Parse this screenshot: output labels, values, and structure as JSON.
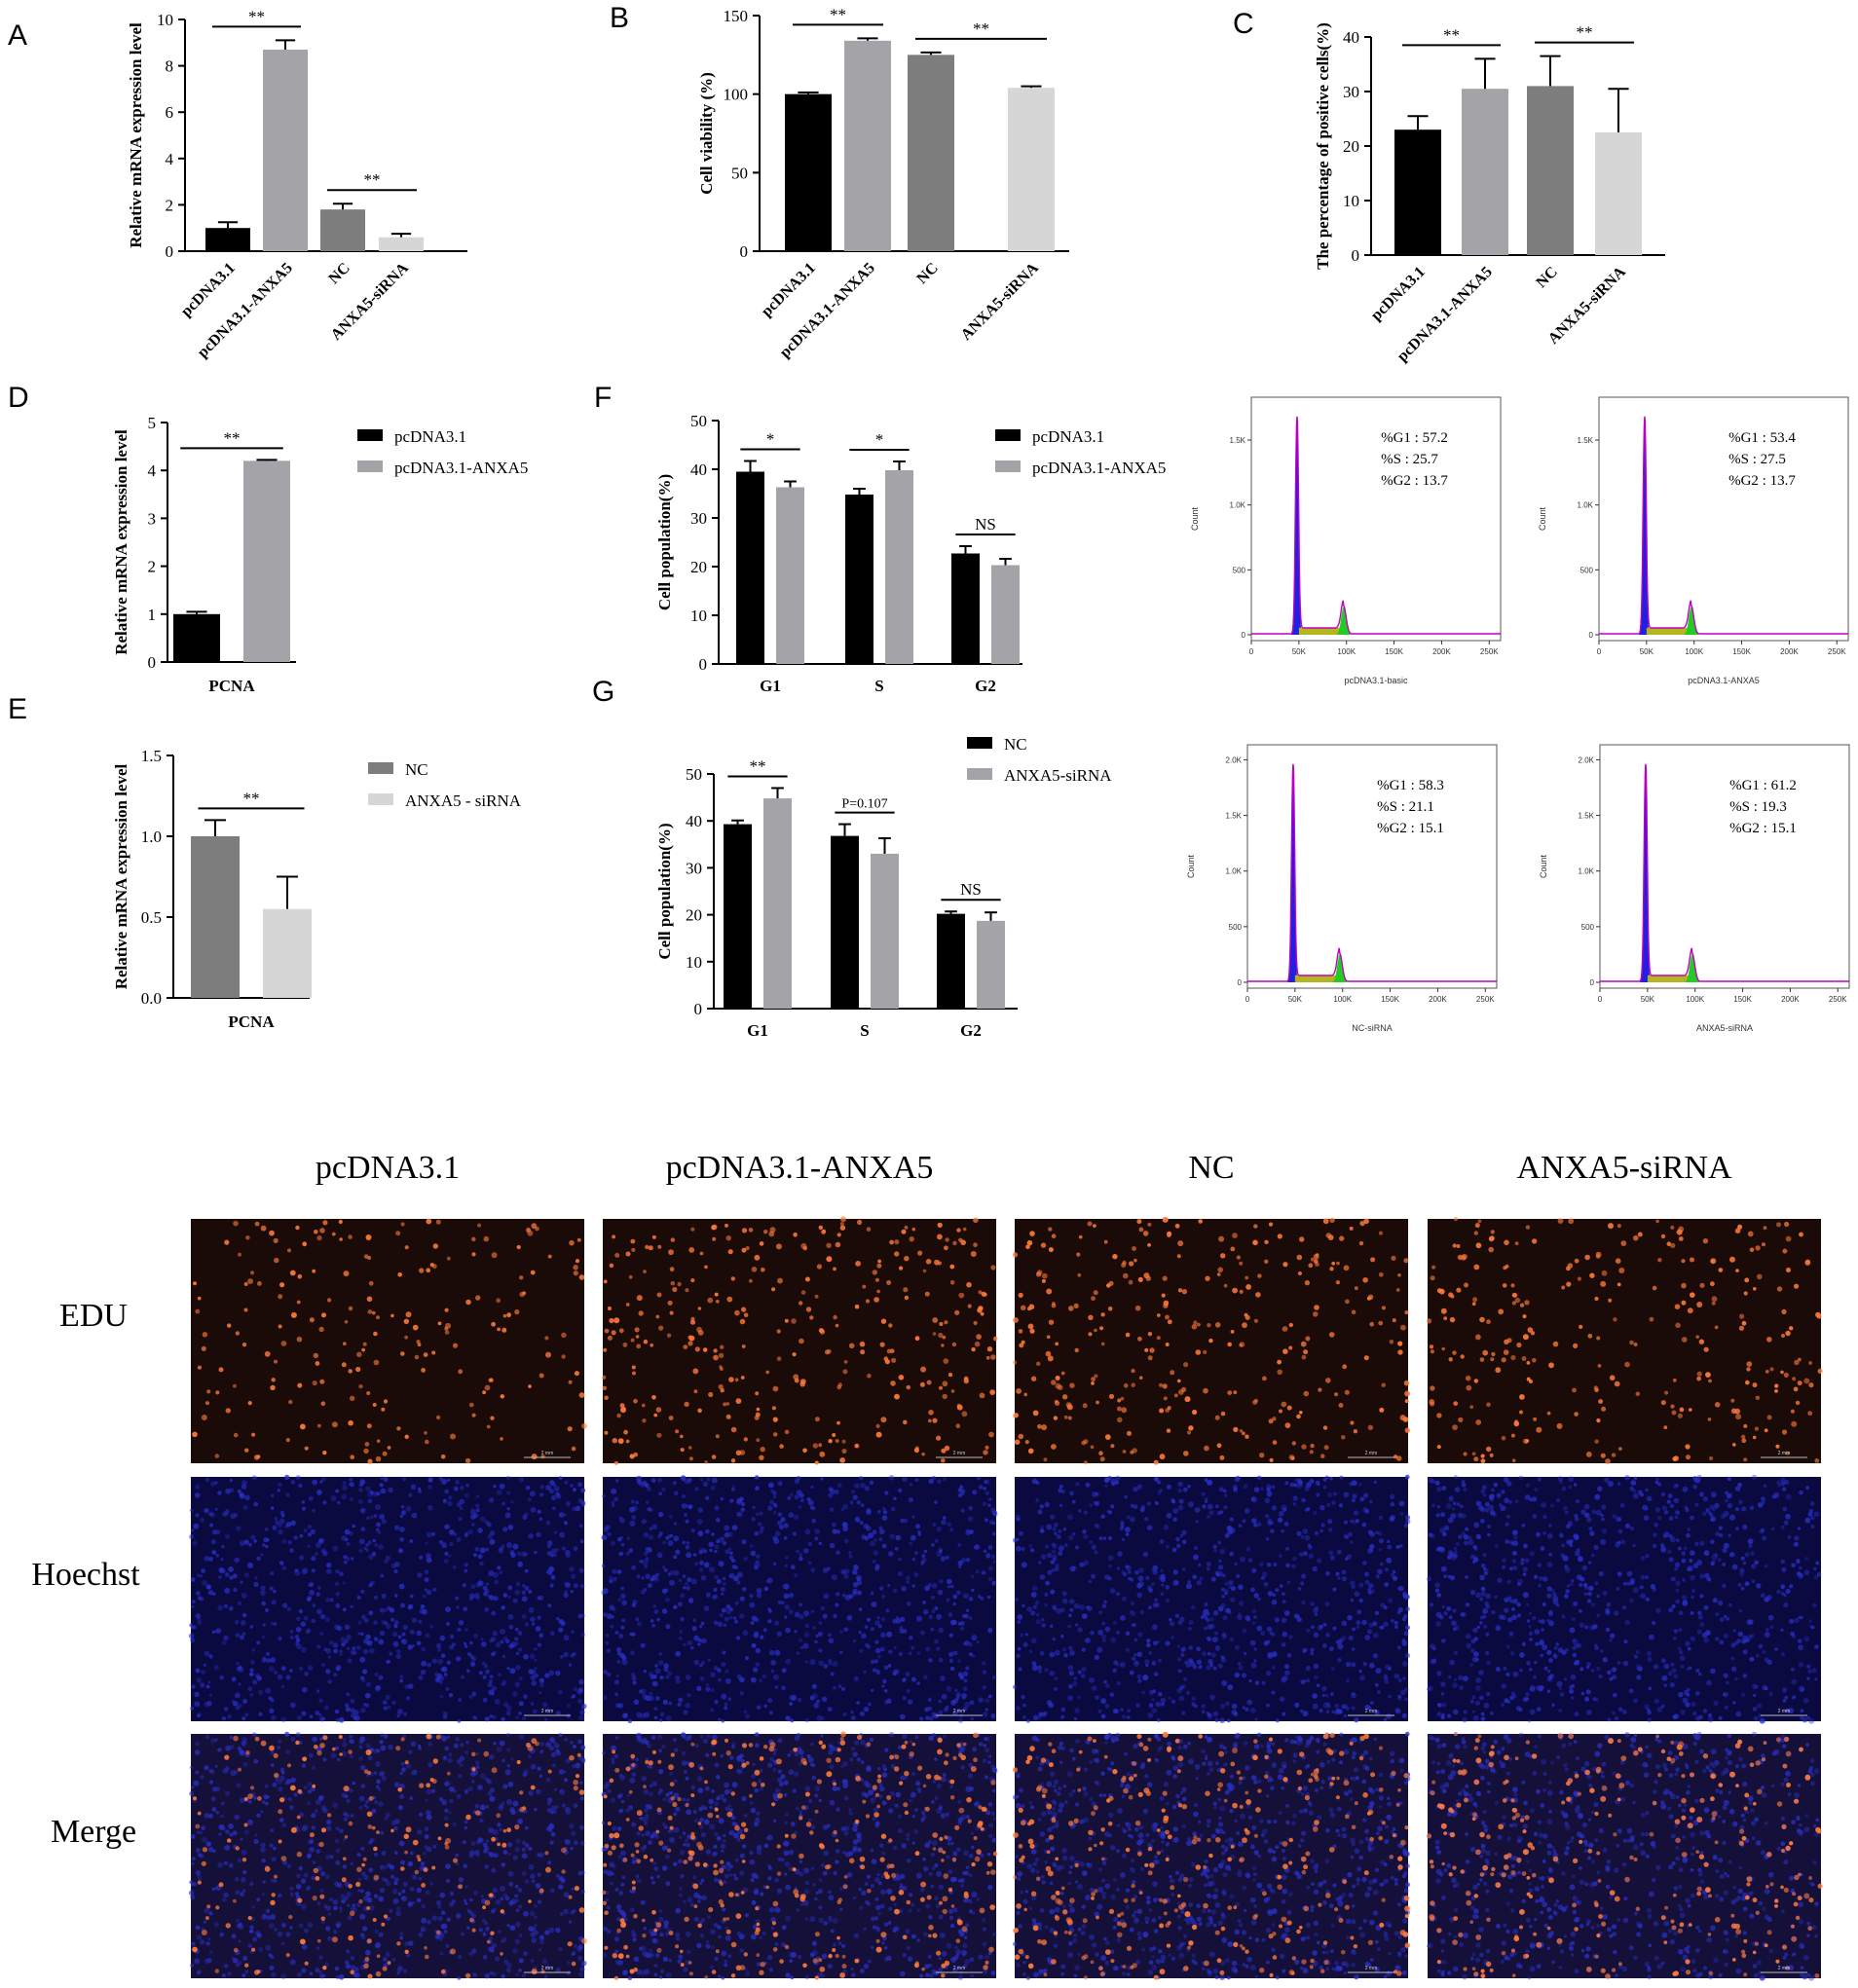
{
  "colors": {
    "black": "#000000",
    "gray": "#a3a3a8",
    "darkgray": "#7d7d7d",
    "lightgray": "#d6d6d6",
    "flow_line": "#c000c0",
    "flow_blue": "#2020e0",
    "flow_green": "#22cc22",
    "flow_yellow": "#b5b520",
    "edu_bg": "#1a0a08",
    "edu_dot": "#ff7a3a",
    "hoechst_bg": "#0a0a40",
    "hoechst_dot": "#2a30c8"
  },
  "chart_data": [
    {
      "id": "A",
      "type": "bar",
      "panel": "A",
      "ylabel": "Relative mRNA expression level",
      "ylim": [
        0,
        10
      ],
      "yticks": [
        0,
        2,
        4,
        6,
        8,
        10
      ],
      "categories": [
        "pcDNA3.1",
        "pcDNA3.1-ANXA5",
        "NC",
        "ANXA5-siRNA"
      ],
      "values": [
        1.0,
        8.7,
        1.8,
        0.6
      ],
      "errors": [
        0.25,
        0.4,
        0.25,
        0.15
      ],
      "bar_colors": [
        "black",
        "gray",
        "darkgray",
        "lightgray"
      ],
      "significance": [
        {
          "from": 0,
          "to": 1,
          "label": "**"
        },
        {
          "from": 2,
          "to": 3,
          "label": "**"
        }
      ]
    },
    {
      "id": "B",
      "type": "bar",
      "panel": "B",
      "ylabel": "Cell viability (%)",
      "ylim": [
        0,
        150
      ],
      "yticks": [
        0,
        50,
        100,
        150
      ],
      "categories": [
        "pcDNA3.1",
        "pcDNA3.1-ANXA5",
        "NC",
        "ANXA5-siRNA"
      ],
      "values": [
        100,
        134,
        125,
        104
      ],
      "errors": [
        1,
        1.5,
        1.5,
        1
      ],
      "bar_colors": [
        "black",
        "gray",
        "darkgray",
        "lightgray"
      ],
      "significance": [
        {
          "from": 0,
          "to": 1,
          "label": "**"
        },
        {
          "from": 2,
          "to": 3,
          "label": "**"
        }
      ]
    },
    {
      "id": "C",
      "type": "bar",
      "panel": "C",
      "ylabel": "The percentage of positive cells(%)",
      "ylim": [
        0,
        40
      ],
      "yticks": [
        0,
        10,
        20,
        30,
        40
      ],
      "categories": [
        "pcDNA3.1",
        "pcDNA3.1-ANXA5",
        "NC",
        "ANXA5-siRNA"
      ],
      "values": [
        23,
        30.5,
        31,
        22.5
      ],
      "errors": [
        2.5,
        5.5,
        5.5,
        8
      ],
      "bar_colors": [
        "black",
        "gray",
        "darkgray",
        "lightgray"
      ],
      "significance": [
        {
          "from": 0,
          "to": 1,
          "label": "**"
        },
        {
          "from": 2,
          "to": 3,
          "label": "**"
        }
      ]
    },
    {
      "id": "D",
      "type": "bar",
      "panel": "D",
      "ylabel": "Relative mRNA expression level",
      "xlabel": "PCNA",
      "ylim": [
        0,
        5
      ],
      "yticks": [
        0,
        1,
        2,
        3,
        4,
        5
      ],
      "series": [
        {
          "name": "pcDNA3.1",
          "values": [
            1.0
          ],
          "errors": [
            0.05
          ],
          "color": "black"
        },
        {
          "name": "pcDNA3.1-ANXA5",
          "values": [
            4.2
          ],
          "errors": [
            0.02
          ],
          "color": "gray"
        }
      ],
      "significance": [
        {
          "from": 0,
          "to": 1,
          "label": "**"
        }
      ]
    },
    {
      "id": "E",
      "type": "bar",
      "panel": "E",
      "ylabel": "Relative mRNA expression level",
      "xlabel": "PCNA",
      "ylim": [
        0,
        1.5
      ],
      "yticks": [
        "0.0",
        "0.5",
        "1.0",
        "1.5"
      ],
      "series": [
        {
          "name": "NC",
          "values": [
            1.0
          ],
          "errors": [
            0.1
          ],
          "color": "darkgray"
        },
        {
          "name": "ANXA5 - siRNA",
          "values": [
            0.55
          ],
          "errors": [
            0.2
          ],
          "color": "lightgray"
        }
      ],
      "significance": [
        {
          "from": 0,
          "to": 1,
          "label": "**"
        }
      ]
    },
    {
      "id": "F",
      "type": "bar",
      "panel": "F",
      "ylabel": "Cell population(%)",
      "ylim": [
        0,
        50
      ],
      "yticks": [
        0,
        10,
        20,
        30,
        40,
        50
      ],
      "categories": [
        "G1",
        "S",
        "G2"
      ],
      "series": [
        {
          "name": "pcDNA3.1",
          "values": [
            39.5,
            34.8,
            22.7
          ],
          "errors": [
            2.2,
            1.2,
            1.5
          ],
          "color": "black"
        },
        {
          "name": "pcDNA3.1-ANXA5",
          "values": [
            36.3,
            39.8,
            20.3
          ],
          "errors": [
            1.2,
            1.8,
            1.3
          ],
          "color": "gray"
        }
      ],
      "significance": [
        {
          "group": 0,
          "label": "*"
        },
        {
          "group": 1,
          "label": "*"
        },
        {
          "group": 2,
          "label": "NS"
        }
      ]
    },
    {
      "id": "G",
      "type": "bar",
      "panel": "G",
      "ylabel": "Cell population(%)",
      "ylim": [
        0,
        50
      ],
      "yticks": [
        0,
        10,
        20,
        30,
        40,
        50
      ],
      "categories": [
        "G1",
        "S",
        "G2"
      ],
      "series": [
        {
          "name": "NC",
          "values": [
            39.3,
            36.8,
            20.2
          ],
          "errors": [
            0.8,
            2.5,
            0.5
          ],
          "color": "black"
        },
        {
          "name": "ANXA5-siRNA",
          "values": [
            44.8,
            33.0,
            18.7
          ],
          "errors": [
            2.2,
            3.3,
            1.8
          ],
          "color": "gray"
        }
      ],
      "significance": [
        {
          "group": 0,
          "label": "**"
        },
        {
          "group": 1,
          "label": "P=0.107"
        },
        {
          "group": 2,
          "label": "NS"
        }
      ]
    }
  ],
  "flow_panels": [
    {
      "id": "flow1",
      "xlabel": "pcDNA3.1-basic",
      "yticks": [
        "0",
        "500",
        "1.0K",
        "1.5K"
      ],
      "ymax": 1800,
      "stats": [
        "%G1 : 57.2",
        "%S : 25.7",
        "%G2 : 13.7"
      ]
    },
    {
      "id": "flow2",
      "xlabel": "pcDNA3.1-ANXA5",
      "yticks": [
        "0",
        "500",
        "1.0K",
        "1.5K"
      ],
      "ymax": 1800,
      "stats": [
        "%G1 : 53.4",
        "%S : 27.5",
        "%G2 : 13.7"
      ]
    },
    {
      "id": "flow3",
      "xlabel": "NC-siRNA",
      "yticks": [
        "0",
        "500",
        "1.0K",
        "1.5K",
        "2.0K"
      ],
      "ymax": 2100,
      "stats": [
        "%G1 : 58.3",
        "%S : 21.1",
        "%G2 : 15.1"
      ]
    },
    {
      "id": "flow4",
      "xlabel": "ANXA5-siRNA",
      "yticks": [
        "0",
        "500",
        "1.0K",
        "1.5K",
        "2.0K"
      ],
      "ymax": 2100,
      "stats": [
        "%G1 : 61.2",
        "%S : 19.3",
        "%G2 : 15.1"
      ]
    }
  ],
  "flow_common": {
    "ylabel": "Count",
    "xticks": [
      "0",
      "50K",
      "100K",
      "150K",
      "200K",
      "250K"
    ]
  },
  "panel_letters": [
    "A",
    "B",
    "C",
    "D",
    "E",
    "F",
    "G"
  ],
  "micro": {
    "columns": [
      "pcDNA3.1",
      "pcDNA3.1-ANXA5",
      "NC",
      "ANXA5-siRNA"
    ],
    "rows": [
      "EDU",
      "Hoechst",
      "Merge"
    ],
    "scale_label": "2 mm",
    "edu_density": [
      0.55,
      0.9,
      0.85,
      0.75
    ]
  }
}
